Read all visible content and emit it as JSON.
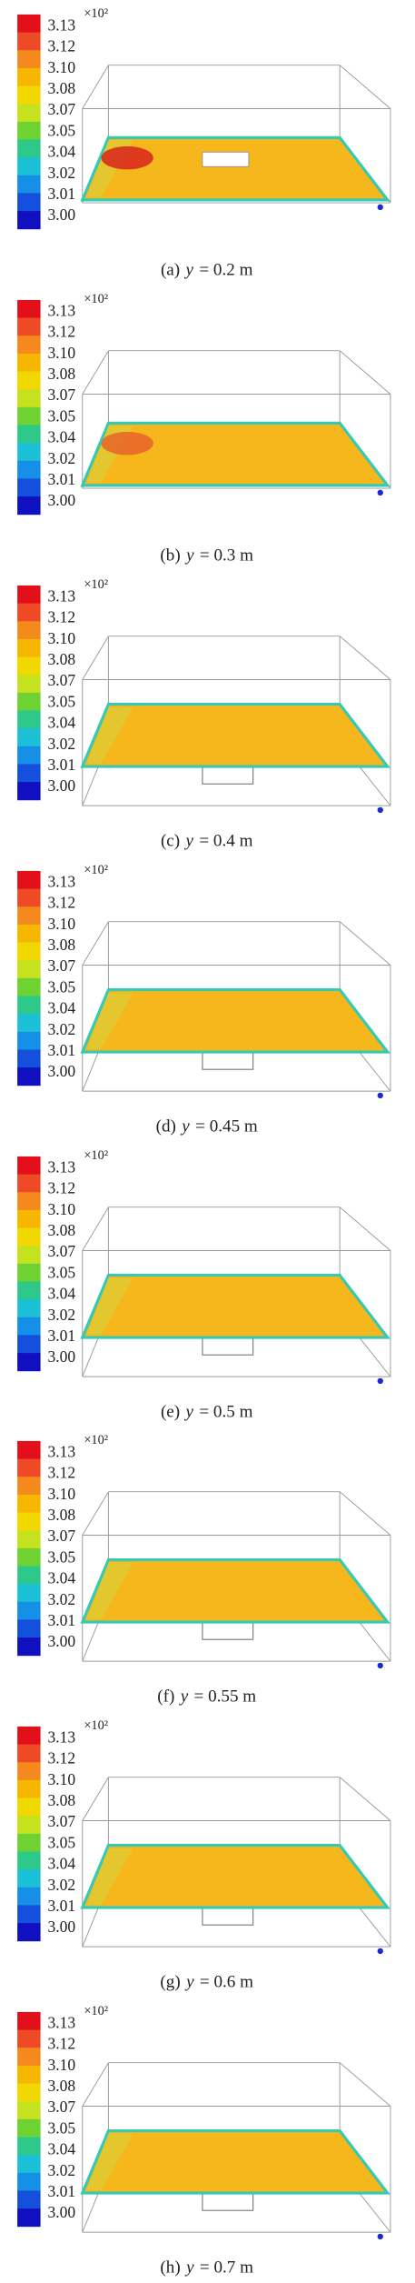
{
  "panels": [
    {
      "colorbar_labels": [
        "3.13",
        "3.12",
        "3.10",
        "3.08",
        "3.07",
        "3.05",
        "3.04",
        "3.02",
        "3.01",
        "3.00"
      ],
      "multiplier": "×10²",
      "caption": {
        "letter": "(a)",
        "symbol": "y",
        "text": "= 0.2 m"
      }
    },
    {
      "colorbar_labels": [
        "3.13",
        "3.12",
        "3.10",
        "3.08",
        "3.07",
        "3.05",
        "3.04",
        "3.02",
        "3.01",
        "3.00"
      ],
      "multiplier": "×10²",
      "caption": {
        "letter": "(b)",
        "symbol": "y",
        "text": "= 0.3 m"
      }
    },
    {
      "colorbar_labels": [
        "3.13",
        "3.12",
        "3.10",
        "3.08",
        "3.07",
        "3.05",
        "3.04",
        "3.02",
        "3.01",
        "3.00"
      ],
      "multiplier": "×10²",
      "caption": {
        "letter": "(c)",
        "symbol": "y",
        "text": "= 0.4 m"
      }
    },
    {
      "colorbar_labels": [
        "3.13",
        "3.12",
        "3.10",
        "3.08",
        "3.07",
        "3.05",
        "3.04",
        "3.02",
        "3.01",
        "3.00"
      ],
      "multiplier": "×10²",
      "caption": {
        "letter": "(d)",
        "symbol": "y",
        "text": "= 0.45 m"
      }
    },
    {
      "colorbar_labels": [
        "3.13",
        "3.12",
        "3.10",
        "3.08",
        "3.07",
        "3.05",
        "3.04",
        "3.02",
        "3.01",
        "3.00"
      ],
      "multiplier": "×10²",
      "caption": {
        "letter": "(e)",
        "symbol": "y",
        "text": "= 0.5 m"
      }
    },
    {
      "colorbar_labels": [
        "3.13",
        "3.12",
        "3.10",
        "3.08",
        "3.07",
        "3.05",
        "3.04",
        "3.02",
        "3.01",
        "3.00"
      ],
      "multiplier": "×10²",
      "caption": {
        "letter": "(f)",
        "symbol": "y",
        "text": "= 0.55 m"
      }
    },
    {
      "colorbar_labels": [
        "3.13",
        "3.12",
        "3.10",
        "3.08",
        "3.07",
        "3.05",
        "3.04",
        "3.02",
        "3.01",
        "3.00"
      ],
      "multiplier": "×10²",
      "caption": {
        "letter": "(g)",
        "symbol": "y",
        "text": "= 0.6 m"
      }
    },
    {
      "colorbar_labels": [
        "3.13",
        "3.12",
        "3.10",
        "3.08",
        "3.07",
        "3.05",
        "3.04",
        "3.02",
        "3.01",
        "3.00"
      ],
      "multiplier": "×10²",
      "caption": {
        "letter": "(h)",
        "symbol": "y",
        "text": "= 0.7 m"
      }
    }
  ]
}
